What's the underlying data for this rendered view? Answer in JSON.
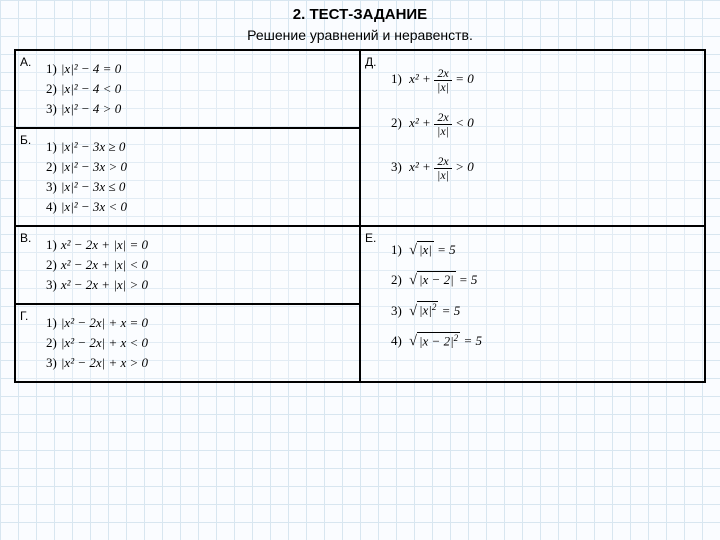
{
  "title": "2. ТЕСТ-ЗАДАНИЕ",
  "subtitle": "Решение уравнений и неравенств.",
  "cells": {
    "A": {
      "label": "А.",
      "items": [
        {
          "no": "1)",
          "expr": "|x|² − 4 = 0"
        },
        {
          "no": "2)",
          "expr": "|x|² − 4 < 0"
        },
        {
          "no": "3)",
          "expr": "|x|² − 4 > 0"
        }
      ]
    },
    "B": {
      "label": "Б.",
      "items": [
        {
          "no": "1)",
          "expr": "|x|² − 3x ≥ 0"
        },
        {
          "no": "2)",
          "expr": "|x|² − 3x > 0"
        },
        {
          "no": "3)",
          "expr": "|x|² − 3x ≤ 0"
        },
        {
          "no": "4)",
          "expr": "|x|² − 3x < 0"
        }
      ]
    },
    "V": {
      "label": "В.",
      "items": [
        {
          "no": "1)",
          "expr": "x² − 2x + |x| = 0"
        },
        {
          "no": "2)",
          "expr": "x² − 2x + |x| < 0"
        },
        {
          "no": "3)",
          "expr": "x² − 2x + |x| > 0"
        }
      ]
    },
    "G": {
      "label": "Г.",
      "items": [
        {
          "no": "1)",
          "expr": "|x² − 2x| + x = 0"
        },
        {
          "no": "2)",
          "expr": "|x² − 2x| + x < 0"
        },
        {
          "no": "3)",
          "expr": "|x² − 2x| + x > 0"
        }
      ]
    },
    "D": {
      "label": "Д.",
      "items": [
        {
          "no": "1)",
          "x2": "x²",
          "plus": "+",
          "num": "2x",
          "den": "|x|",
          "tail": "= 0"
        },
        {
          "no": "2)",
          "x2": "x²",
          "plus": "+",
          "num": "2x",
          "den": "|x|",
          "tail": "< 0"
        },
        {
          "no": "3)",
          "x2": "x²",
          "plus": "+",
          "num": "2x",
          "den": "|x|",
          "tail": "> 0"
        }
      ]
    },
    "E": {
      "label": "Е.",
      "items": [
        {
          "no": "1)",
          "rootinner": "|x|",
          "sup": "",
          "tail": " = 5"
        },
        {
          "no": "2)",
          "rootinner": "|x − 2|",
          "sup": "",
          "tail": " = 5"
        },
        {
          "no": "3)",
          "rootinner": "|x|",
          "sup": "2",
          "tail": " = 5",
          "sqexp": "²"
        },
        {
          "no": "4)",
          "rootinner": "|x − 2|",
          "sup": "2",
          "tail": " = 5",
          "sqexp": "²"
        }
      ]
    }
  }
}
